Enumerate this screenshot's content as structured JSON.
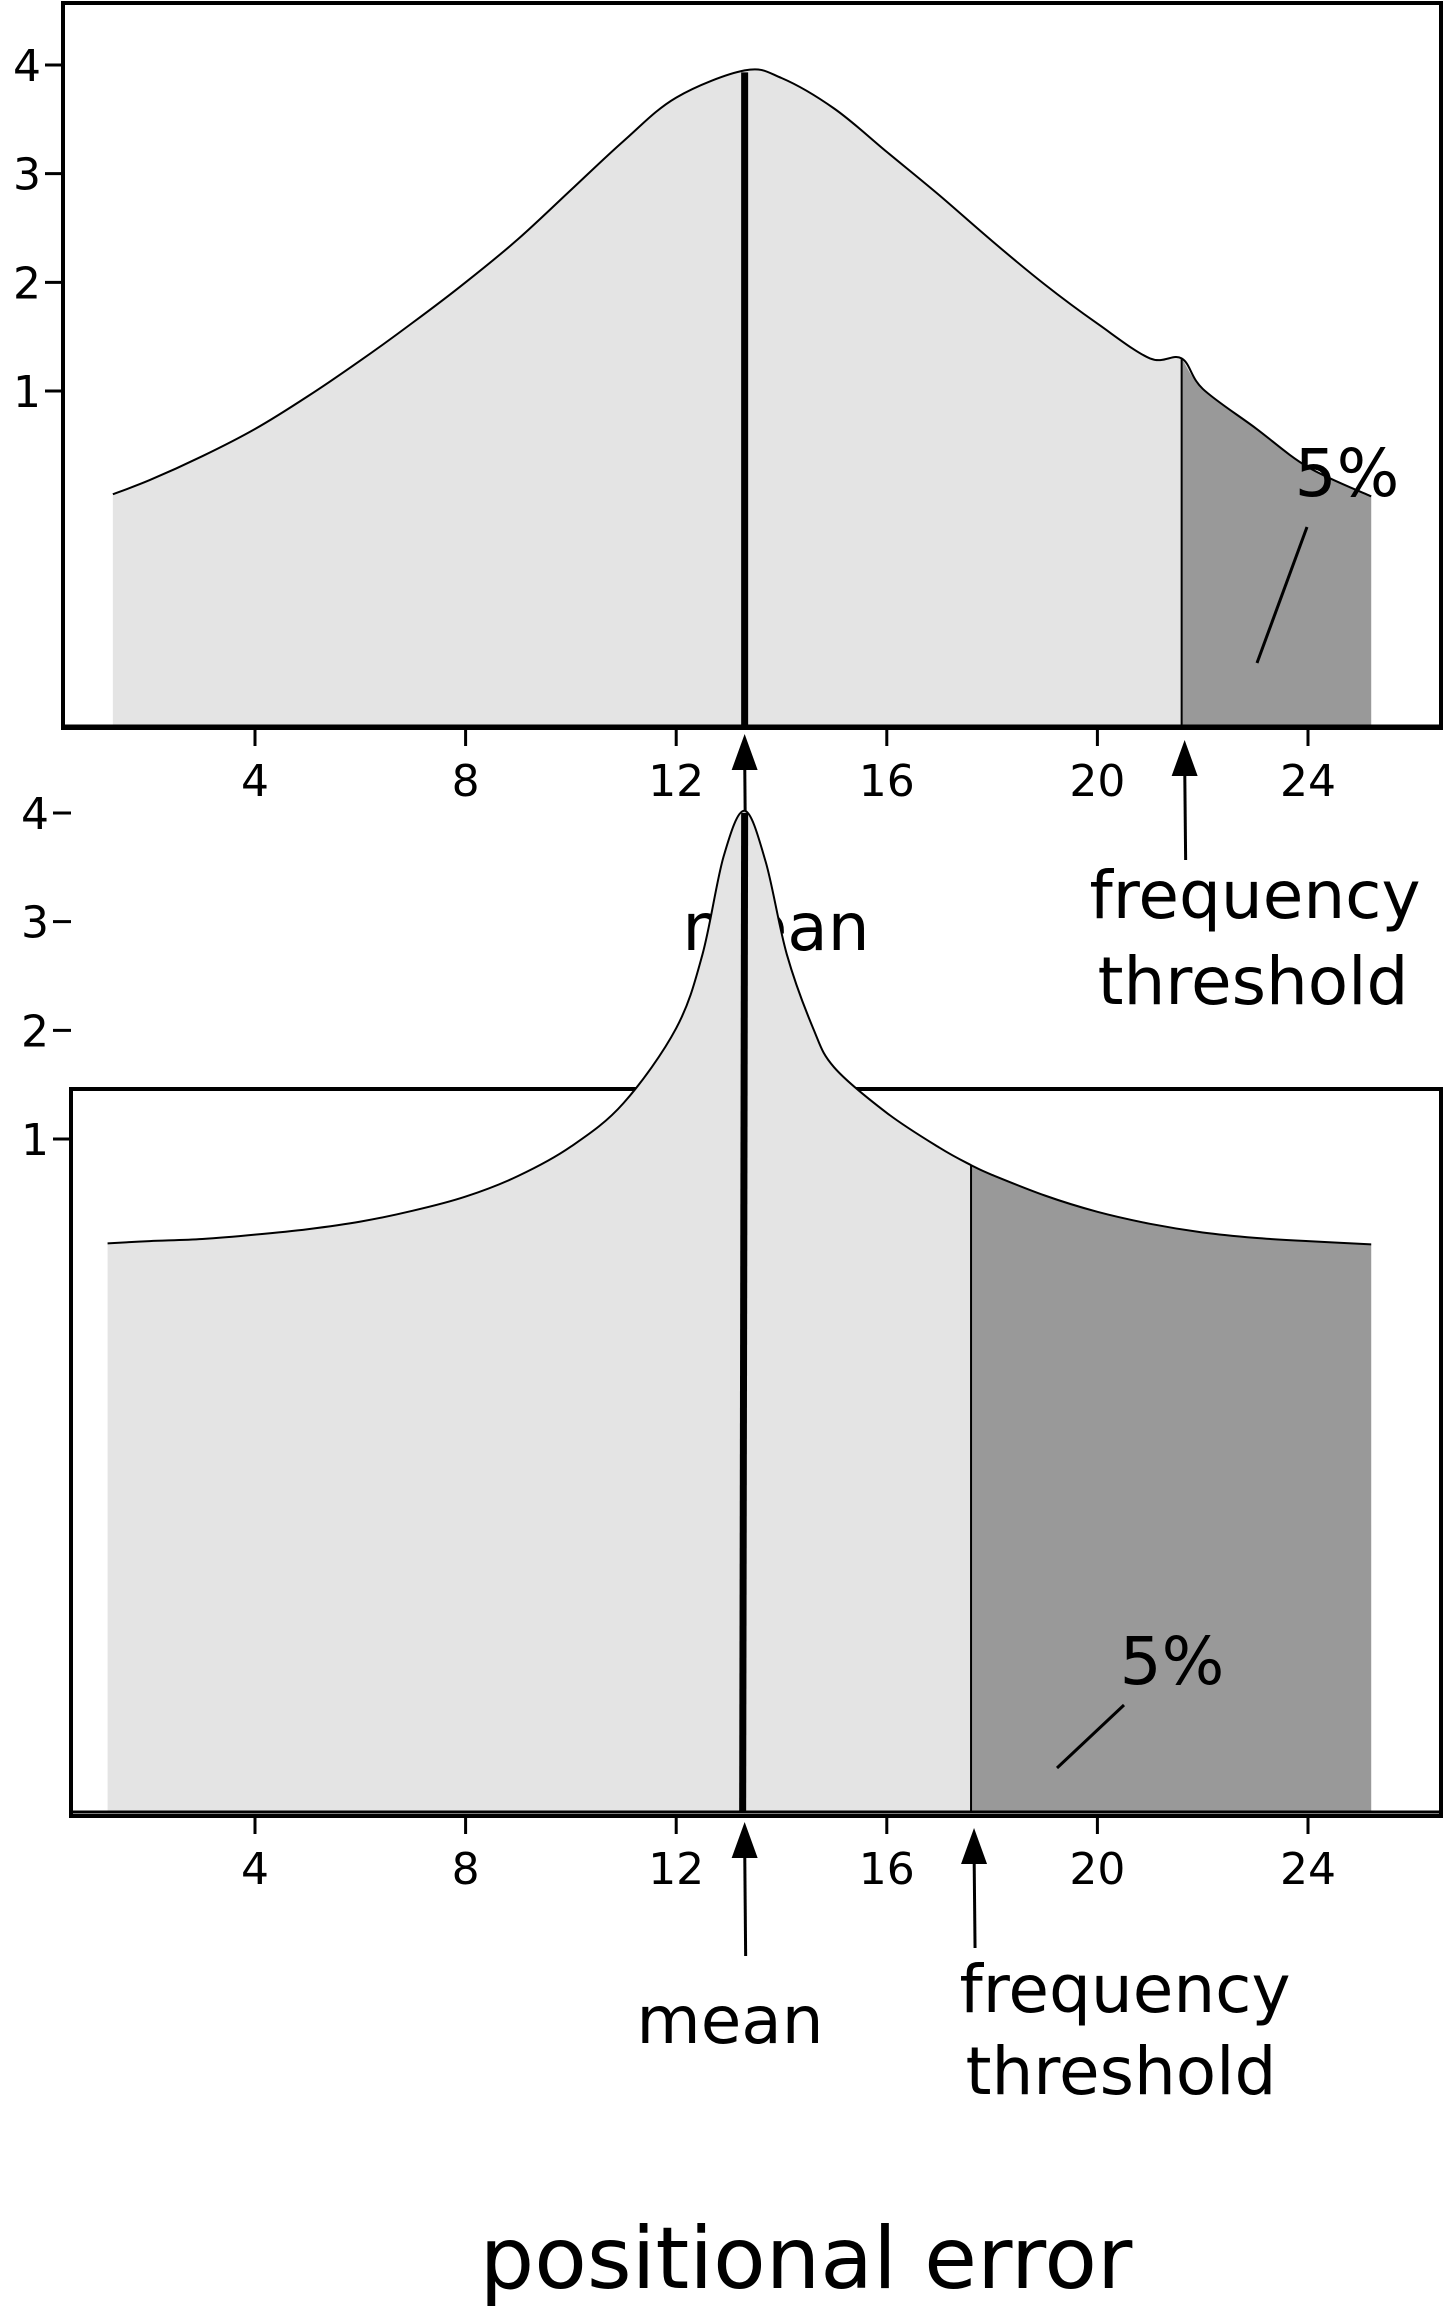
{
  "chart_data": [
    {
      "type": "area",
      "distribution": "normal",
      "x_ticks": [
        4,
        8,
        12,
        16,
        20,
        24
      ],
      "y_ticks": [
        1,
        2,
        3,
        4
      ],
      "xlim": [
        0.5,
        26.5
      ],
      "ylim": [
        0,
        4.6
      ],
      "grid": false,
      "curve": {
        "x": [
          1.3,
          2,
          3,
          4,
          5,
          6,
          7,
          8,
          9,
          10,
          11,
          12,
          13.3,
          14,
          15,
          16,
          17,
          18,
          19,
          20,
          21,
          21.6,
          22,
          23,
          24,
          25.2
        ],
        "y": [
          0.05,
          0.18,
          0.4,
          0.65,
          0.95,
          1.28,
          1.63,
          2.0,
          2.4,
          2.85,
          3.3,
          3.7,
          3.95,
          3.88,
          3.6,
          3.2,
          2.8,
          2.38,
          1.98,
          1.62,
          1.3,
          1.3,
          1.02,
          0.66,
          0.3,
          0.03
        ]
      },
      "mean": 13.3,
      "mean_label": "mean",
      "threshold": 21.6,
      "threshold_label": [
        "frequency",
        "threshold"
      ],
      "tail_label": "5%"
    },
    {
      "type": "area",
      "distribution": "peaked",
      "x_ticks": [
        4,
        8,
        12,
        16,
        20,
        24
      ],
      "y_ticks": [
        1,
        2,
        3,
        4
      ],
      "xlim": [
        0.5,
        26.5
      ],
      "ylim": [
        0,
        4.6
      ],
      "grid": false,
      "curve": {
        "x": [
          1.2,
          2,
          3,
          4,
          5,
          6,
          7,
          8,
          9,
          10,
          11,
          12,
          12.5,
          12.9,
          13.3,
          13.7,
          14.1,
          14.6,
          15,
          16,
          17,
          17.6,
          18,
          19,
          20,
          21,
          22,
          23,
          24,
          25.2
        ],
        "y": [
          0.04,
          0.06,
          0.08,
          0.12,
          0.17,
          0.24,
          0.34,
          0.47,
          0.66,
          0.93,
          1.33,
          2.02,
          2.7,
          3.6,
          4.02,
          3.55,
          2.7,
          2.02,
          1.66,
          1.24,
          0.92,
          0.76,
          0.67,
          0.48,
          0.33,
          0.22,
          0.14,
          0.09,
          0.06,
          0.03
        ]
      },
      "mean": 13.3,
      "mean_label": "mean",
      "threshold": 17.6,
      "threshold_label": [
        "frequency",
        "threshold"
      ],
      "tail_label": "5%"
    }
  ],
  "xlabel": "positional error",
  "colors": {
    "body_fill": "#e4e4e4",
    "tail_fill": "#999999",
    "line": "#000000"
  }
}
